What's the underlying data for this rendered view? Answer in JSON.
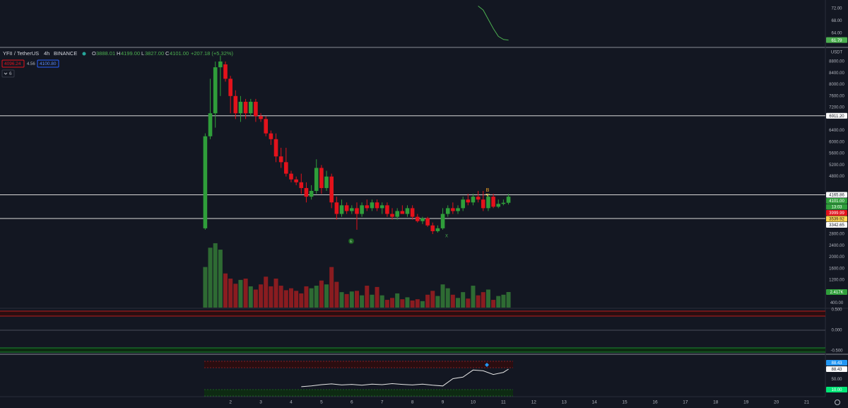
{
  "header": {
    "symbol": "YFII / TetherUS",
    "interval": "4h",
    "exchange": "BINANCE",
    "ohlc": [
      {
        "key": "O",
        "value": "3888.01"
      },
      {
        "key": "H",
        "value": "4199.00"
      },
      {
        "key": "L",
        "value": "3827.00"
      },
      {
        "key": "C",
        "value": "4101.00"
      }
    ],
    "change": "+207.18 (+5.32%)"
  },
  "trade": {
    "sell": "4096.24",
    "spread": "4.56",
    "buy": "4100.80"
  },
  "indicators_count": "6",
  "currency": "USDT",
  "countdown": "13:03",
  "annotations": [
    "B",
    "E",
    "X"
  ],
  "middle_panel": {
    "ylim": [
      -0.569,
      0.517
    ],
    "yticks": [
      {
        "value": 0.5,
        "label": "0.500"
      },
      {
        "value": 0,
        "label": "0.000"
      },
      {
        "value": -0.5,
        "label": "-0.500"
      }
    ]
  },
  "chart_data": [
    {
      "type": "line",
      "color": "#4caf50",
      "x": [
        10.167,
        10.333,
        10.5,
        10.667,
        10.833,
        11,
        11.167
      ],
      "values": [
        72.8,
        71.5,
        68.5,
        65.5,
        63,
        62,
        61.79
      ],
      "ylim": [
        59.66,
        74.74
      ],
      "yticks": [
        {
          "value": 72,
          "label": "72.00"
        },
        {
          "value": 68,
          "label": "68.00"
        },
        {
          "value": 64,
          "label": "64.00"
        }
      ],
      "badges": [
        {
          "value": 61.79,
          "label": "61.79",
          "color": "#4caf50"
        }
      ]
    },
    {
      "type": "candlestick",
      "up_color": "#2f9e3a",
      "down_color": "#e3121b",
      "xlim": [
        -5.6,
        21.5
      ],
      "xticks": [
        2,
        3,
        4,
        5,
        6,
        7,
        8,
        9,
        10,
        11,
        12,
        13,
        14,
        15,
        16,
        17,
        18,
        19,
        20,
        21
      ],
      "ylim": [
        243,
        9267
      ],
      "yticks": [
        {
          "value": 8800,
          "label": "8800.00"
        },
        {
          "value": 8400,
          "label": "8400.00"
        },
        {
          "value": 8000,
          "label": "8000.00"
        },
        {
          "value": 7600,
          "label": "7600.00"
        },
        {
          "value": 7200,
          "label": "7200.00"
        },
        {
          "value": 6400,
          "label": "6400.00"
        },
        {
          "value": 6000,
          "label": "6000.00"
        },
        {
          "value": 5600,
          "label": "5600.00"
        },
        {
          "value": 5200,
          "label": "5200.00"
        },
        {
          "value": 4800,
          "label": "4800.00"
        },
        {
          "value": 2800,
          "label": "2800.00"
        },
        {
          "value": 2400,
          "label": "2400.00"
        },
        {
          "value": 2000,
          "label": "2000.00"
        },
        {
          "value": 1600,
          "label": "1600.00"
        },
        {
          "value": 1200,
          "label": "1200.00"
        },
        {
          "value": 800,
          "label": "800.00"
        },
        {
          "value": 400,
          "label": "400.00"
        }
      ],
      "x": [
        1.167,
        1.333,
        1.5,
        1.667,
        1.833,
        2,
        2.167,
        2.333,
        2.5,
        2.667,
        2.833,
        3,
        3.167,
        3.333,
        3.5,
        3.667,
        3.833,
        4,
        4.167,
        4.333,
        4.5,
        4.667,
        4.833,
        5,
        5.167,
        5.333,
        5.5,
        5.667,
        5.833,
        6,
        6.167,
        6.333,
        6.5,
        6.667,
        6.833,
        7,
        7.167,
        7.333,
        7.5,
        7.667,
        7.833,
        8,
        8.167,
        8.333,
        8.5,
        8.667,
        8.833,
        9,
        9.167,
        9.333,
        9.5,
        9.667,
        9.833,
        10,
        10.167,
        10.333,
        10.5,
        10.667,
        10.833,
        11,
        11.167
      ],
      "open": [
        3000,
        6200,
        7000,
        8600,
        8700,
        8200,
        7600,
        7000,
        7400,
        7000,
        7400,
        6900,
        6800,
        6300,
        6100,
        5500,
        5300,
        4900,
        4700,
        4600,
        4400,
        4100,
        4300,
        5100,
        4400,
        4800,
        3900,
        3500,
        3800,
        3600,
        3700,
        3500,
        3800,
        3700,
        3900,
        3700,
        3800,
        3500,
        3400,
        3600,
        3500,
        3700,
        3400,
        3250,
        3350,
        3100,
        2900,
        3000,
        3500,
        3700,
        3600,
        3700,
        4000,
        3900,
        4100,
        4000,
        3700,
        4100,
        3750,
        3850,
        3888
      ],
      "high": [
        6300,
        8200,
        8800,
        9000,
        8800,
        8300,
        7800,
        7600,
        7500,
        7500,
        7500,
        7000,
        6900,
        6400,
        6300,
        5800,
        5800,
        5000,
        4800,
        4900,
        4600,
        4500,
        5400,
        5200,
        5000,
        4900,
        4100,
        4000,
        3900,
        3800,
        3900,
        3900,
        4000,
        4000,
        4000,
        3900,
        3900,
        3700,
        3700,
        3800,
        3800,
        3800,
        3500,
        3400,
        3400,
        3200,
        3100,
        3700,
        3800,
        3900,
        3800,
        4100,
        4200,
        4200,
        4300,
        4300,
        4200,
        4200,
        4000,
        4000,
        4199
      ],
      "low": [
        2950,
        6100,
        6500,
        7600,
        8100,
        7000,
        6800,
        6700,
        6800,
        6900,
        6700,
        6700,
        6200,
        5900,
        5300,
        5100,
        4800,
        4600,
        4500,
        4200,
        3900,
        4000,
        4200,
        4200,
        4300,
        3700,
        3300,
        3400,
        3500,
        3500,
        2950,
        3400,
        3600,
        3600,
        3600,
        3500,
        3400,
        3300,
        3300,
        3500,
        3400,
        3300,
        3200,
        3150,
        3050,
        2800,
        2850,
        2950,
        3400,
        3500,
        3500,
        3600,
        3800,
        3800,
        3900,
        3600,
        3600,
        3700,
        3700,
        3800,
        3827
      ],
      "close": [
        6200,
        7000,
        8600,
        8800,
        8200,
        7600,
        7000,
        7400,
        7000,
        7400,
        6900,
        6800,
        6300,
        6100,
        5500,
        5300,
        4900,
        4700,
        4600,
        4400,
        4100,
        4300,
        5100,
        4400,
        4800,
        3900,
        3500,
        3800,
        3600,
        3700,
        3500,
        3800,
        3700,
        3900,
        3700,
        3800,
        3500,
        3400,
        3600,
        3500,
        3700,
        3400,
        3250,
        3350,
        3100,
        2900,
        3000,
        3500,
        3700,
        3600,
        3700,
        4000,
        3900,
        4100,
        4000,
        3700,
        4100,
        3750,
        3850,
        3888,
        4101
      ],
      "volume": {
        "ylim": [
          0,
          40.3
        ],
        "up_color": "#2e6b33",
        "down_color": "#8a1c20",
        "last_label": "2.417K",
        "last_color": "#2f9e3a",
        "values": [
          6.3,
          9.3,
          10,
          9,
          5.3,
          4.5,
          3.7,
          4.3,
          4.5,
          3.3,
          2.8,
          3.6,
          4.8,
          3.3,
          4.5,
          3.4,
          2.7,
          3.0,
          2.6,
          2.2,
          3.3,
          3.0,
          3.4,
          4.2,
          3.6,
          6.3,
          4.0,
          2.4,
          2.1,
          2.5,
          2.6,
          1.9,
          3.4,
          2.0,
          3.2,
          1.9,
          1.2,
          1.5,
          2.2,
          1.3,
          1.6,
          1.1,
          1.3,
          1.0,
          2.0,
          2.6,
          1.8,
          3.6,
          3.0,
          2.0,
          1.5,
          2.4,
          1.4,
          3.4,
          1.9,
          2.4,
          2.8,
          1.2,
          1.8,
          2.0,
          2.417
        ]
      },
      "price_lines": [
        {
          "value": 6911.2,
          "label": "6911.20"
        },
        {
          "value": 4165.86,
          "label": "4165.86"
        },
        {
          "value": 3342.65,
          "label": "3342.65"
        }
      ],
      "badges": [
        {
          "value": 4101,
          "label": "4101.00",
          "color": "#2f9e3a"
        },
        {
          "value": 3999.99,
          "label": "3999.99",
          "color": "#e3121b"
        },
        {
          "value": 3539.92,
          "label": "3539.92",
          "color": "#ffd54f"
        }
      ]
    },
    {
      "type": "line",
      "color": "#e6e6e6",
      "x": [
        4.333,
        4.667,
        5,
        5.333,
        5.667,
        6,
        6.333,
        6.667,
        7,
        7.333,
        7.667,
        8,
        8.333,
        8.667,
        9,
        9.333,
        9.667,
        10,
        10.333,
        10.667,
        11,
        11.167
      ],
      "values": [
        21,
        24,
        29,
        32,
        28,
        30,
        27,
        31,
        29,
        33,
        30,
        28,
        31,
        27,
        24,
        52,
        58,
        85,
        82,
        68,
        76,
        88.43
      ],
      "ylim": [
        -14.3,
        139.8
      ],
      "yticks": [
        {
          "value": 50,
          "label": "50.00"
        }
      ],
      "badges": [
        {
          "value": 88.43,
          "label": "88.43",
          "color": "#2196f3"
        },
        {
          "value": 88.43,
          "label": "88.43",
          "color": "#ffffff"
        },
        {
          "value": 10,
          "label": "10.00",
          "color": "#00e676"
        }
      ]
    }
  ]
}
